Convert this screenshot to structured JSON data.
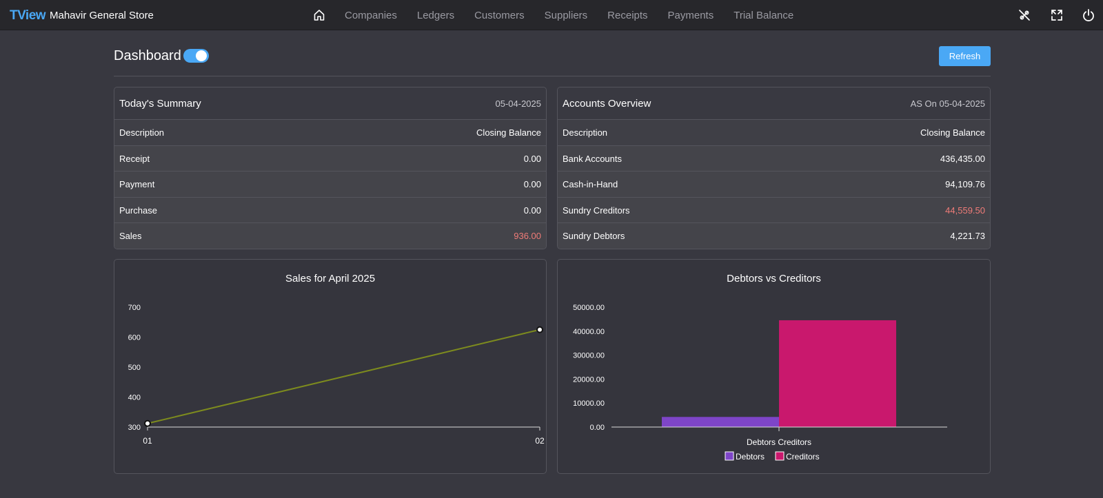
{
  "topbar": {
    "brand": "TView",
    "company": "Mahavir General Store",
    "nav": [
      "Companies",
      "Ledgers",
      "Customers",
      "Suppliers",
      "Receipts",
      "Payments",
      "Trial Balance"
    ]
  },
  "dashboard": {
    "title": "Dashboard",
    "refresh_label": "Refresh"
  },
  "todays_summary": {
    "title": "Today's Summary",
    "date": "05-04-2025",
    "col_desc": "Description",
    "col_bal": "Closing Balance",
    "rows": [
      {
        "label": "Receipt",
        "value": "0.00"
      },
      {
        "label": "Payment",
        "value": "0.00"
      },
      {
        "label": "Purchase",
        "value": "0.00"
      },
      {
        "label": "Sales",
        "value": "936.00"
      }
    ]
  },
  "accounts_overview": {
    "title": "Accounts Overview",
    "date": "AS On 05-04-2025",
    "col_desc": "Description",
    "col_bal": "Closing Balance",
    "rows": [
      {
        "label": "Bank Accounts",
        "value": "436,435.00"
      },
      {
        "label": "Cash-in-Hand",
        "value": "94,109.76"
      },
      {
        "label": "Sundry Creditors",
        "value": "44,559.50"
      },
      {
        "label": "Sundry Debtors",
        "value": "4,221.73"
      }
    ]
  },
  "colors": {
    "accent": "#4aa8f5",
    "negative": "#f07c78",
    "line": "#7d8b1e",
    "debtors": "#7e45c8",
    "creditors": "#c9186d"
  },
  "chart_data": [
    {
      "type": "line",
      "title": "Sales for April 2025",
      "x": [
        "01",
        "02"
      ],
      "series": [
        {
          "values": [
            312,
            625
          ]
        }
      ],
      "ylim": [
        300,
        700
      ],
      "yticks": [
        "700",
        "600",
        "500",
        "400",
        "300"
      ]
    },
    {
      "type": "bar",
      "title": "Debtors vs Creditors",
      "categories": [
        "Debtors Creditors"
      ],
      "series": [
        {
          "name": "Debtors",
          "values": [
            4221.73
          ]
        },
        {
          "name": "Creditors",
          "values": [
            44559.5
          ]
        }
      ],
      "ylim": [
        0,
        50000
      ],
      "yticks": [
        "50000.00",
        "40000.00",
        "30000.00",
        "20000.00",
        "10000.00",
        "0.00"
      ],
      "legend": "bottom"
    }
  ]
}
